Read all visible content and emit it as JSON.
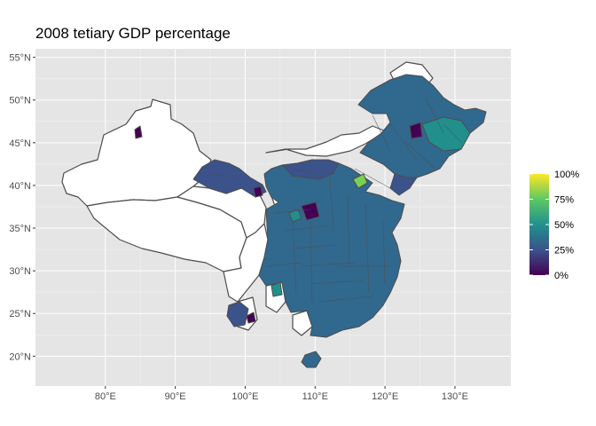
{
  "title": "2008 tetiary GDP percentage",
  "map": {
    "region": "China",
    "lon_range": [
      70,
      138
    ],
    "lat_range": [
      16.5,
      56
    ],
    "x_ticks": [
      80,
      90,
      100,
      110,
      120,
      130
    ],
    "y_ticks": [
      20,
      25,
      30,
      35,
      40,
      45,
      50,
      55
    ],
    "x_tick_labels": [
      "80°E",
      "90°E",
      "100°E",
      "110°E",
      "120°E",
      "130°E"
    ],
    "y_tick_labels": [
      "20°N",
      "25°N",
      "30°N",
      "35°N",
      "40°N",
      "45°N",
      "50°N",
      "55°N"
    ],
    "panel_background": "#e5e5e5",
    "grid_color": "#ffffff",
    "border_color": "#4d4d4d",
    "missing_fill": "#ffffff"
  },
  "legend": {
    "placement": "right",
    "palette": "viridis",
    "range": [
      0,
      100
    ],
    "breaks": [
      0,
      25,
      50,
      75,
      100
    ],
    "labels": [
      "0%",
      "25%",
      "50%",
      "75%",
      "100%"
    ]
  },
  "regions_with_data": {
    "northeast_inner_mongolia_heilongjiang": 35,
    "heilongjiang_east": 45,
    "jilin_liaoning": 38,
    "western_inner_mongolia": 33,
    "gansu_corridor": 30,
    "north_china_plain": 32,
    "beijing_area": 72,
    "shanxi_dark_prefecture": 10,
    "yunnan_guangxi_guangdong_south": 32,
    "sichuan_chongqing": 30,
    "hainan": 35,
    "urumqi_area": 12
  }
}
